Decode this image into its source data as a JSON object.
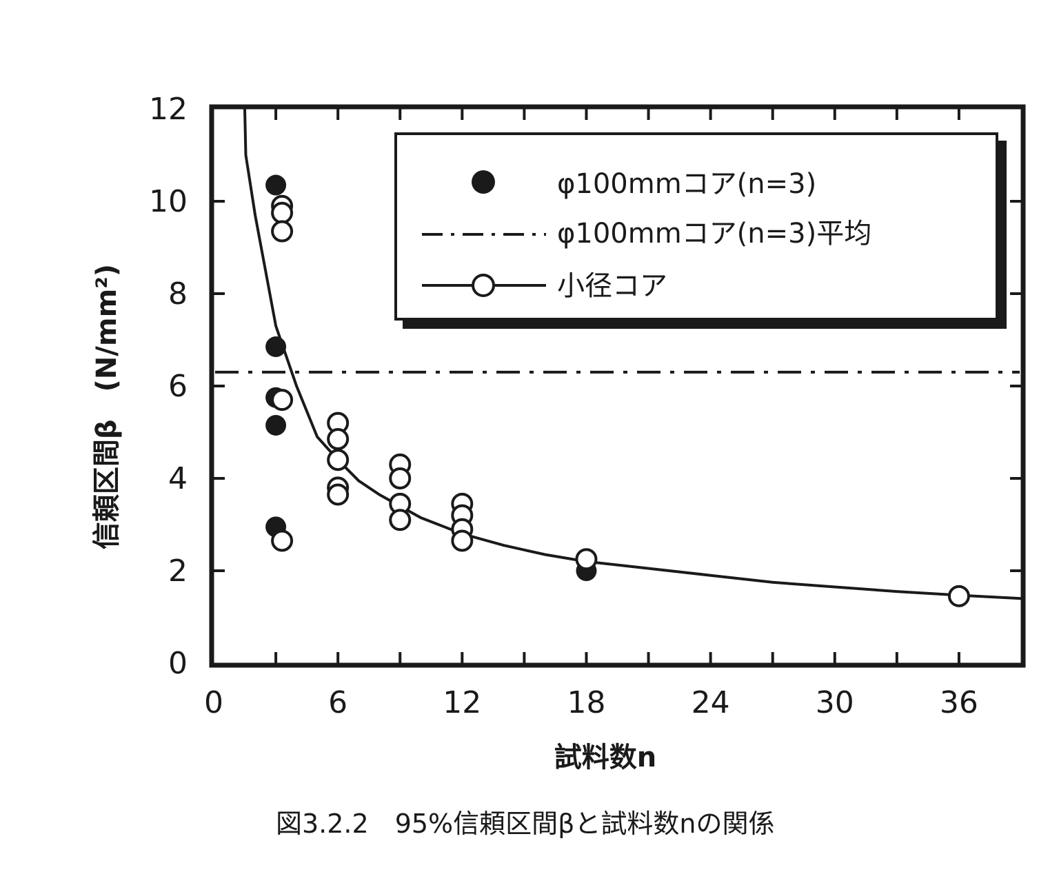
{
  "chart_data": {
    "type": "scatter",
    "caption": "図3.2.2　95%信頼区間βと試料数nの関係",
    "xlabel": "試料数n",
    "ylabel": "信頼区間β　(N/mm²)",
    "xlim": [
      0,
      39
    ],
    "ylim": [
      0,
      12
    ],
    "xticks": [
      "0",
      "6",
      "12",
      "18",
      "24",
      "30",
      "36"
    ],
    "xtick_values": [
      0,
      6,
      12,
      18,
      24,
      30,
      36
    ],
    "yticks": [
      "0",
      "2",
      "4",
      "6",
      "8",
      "10",
      "12"
    ],
    "ytick_values": [
      0,
      2,
      4,
      6,
      8,
      10,
      12
    ],
    "grid": false,
    "legend_position": "top-right",
    "series": [
      {
        "name": "φ100mmコア(n=3)",
        "marker": "filled-circle",
        "points": [
          {
            "x": 3,
            "y": 10.35
          },
          {
            "x": 3,
            "y": 6.85
          },
          {
            "x": 3,
            "y": 5.75
          },
          {
            "x": 3,
            "y": 5.15
          },
          {
            "x": 3,
            "y": 2.95
          },
          {
            "x": 18,
            "y": 2.0
          }
        ]
      },
      {
        "name": "φ100mmコア(n=3)平均",
        "style": "dash-dot",
        "y": 6.3
      },
      {
        "name": "小径コア",
        "marker": "open-circle",
        "points": [
          {
            "x": 3.3,
            "y": 9.9
          },
          {
            "x": 3.3,
            "y": 9.75
          },
          {
            "x": 3.3,
            "y": 9.35
          },
          {
            "x": 3.3,
            "y": 5.7
          },
          {
            "x": 3.3,
            "y": 2.65
          },
          {
            "x": 6,
            "y": 5.2
          },
          {
            "x": 6,
            "y": 4.85
          },
          {
            "x": 6,
            "y": 4.4
          },
          {
            "x": 6,
            "y": 3.8
          },
          {
            "x": 6,
            "y": 3.65
          },
          {
            "x": 9,
            "y": 4.3
          },
          {
            "x": 9,
            "y": 4.0
          },
          {
            "x": 9,
            "y": 3.45
          },
          {
            "x": 9,
            "y": 3.1
          },
          {
            "x": 12,
            "y": 3.45
          },
          {
            "x": 12,
            "y": 3.2
          },
          {
            "x": 12,
            "y": 2.9
          },
          {
            "x": 12,
            "y": 2.65
          },
          {
            "x": 18,
            "y": 2.25
          },
          {
            "x": 36,
            "y": 1.45
          }
        ],
        "curve": [
          {
            "x": 1.5,
            "y": 12
          },
          {
            "x": 1.55,
            "y": 11.0
          },
          {
            "x": 2,
            "y": 9.7
          },
          {
            "x": 3,
            "y": 7.3
          },
          {
            "x": 4,
            "y": 6.0
          },
          {
            "x": 5,
            "y": 4.9
          },
          {
            "x": 6,
            "y": 4.4
          },
          {
            "x": 7,
            "y": 3.95
          },
          {
            "x": 8,
            "y": 3.65
          },
          {
            "x": 9,
            "y": 3.4
          },
          {
            "x": 10,
            "y": 3.15
          },
          {
            "x": 12,
            "y": 2.8
          },
          {
            "x": 14,
            "y": 2.55
          },
          {
            "x": 16,
            "y": 2.35
          },
          {
            "x": 18,
            "y": 2.2
          },
          {
            "x": 21,
            "y": 2.05
          },
          {
            "x": 24,
            "y": 1.9
          },
          {
            "x": 27,
            "y": 1.75
          },
          {
            "x": 30,
            "y": 1.65
          },
          {
            "x": 33,
            "y": 1.55
          },
          {
            "x": 36,
            "y": 1.47
          },
          {
            "x": 39,
            "y": 1.4
          }
        ]
      }
    ]
  },
  "colors": {
    "ink": "#1a1a1a",
    "background": "#ffffff"
  }
}
